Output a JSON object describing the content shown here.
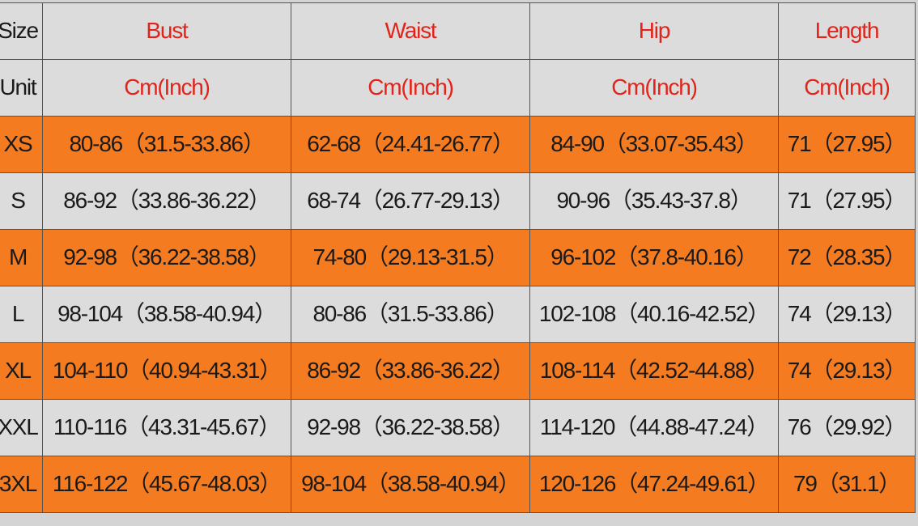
{
  "colors": {
    "header_text": "#e2231a",
    "orange_row": "#f47b20",
    "gray_row": "#dcdcdc"
  },
  "header": {
    "size": "Size",
    "columns": [
      "Bust",
      "Waist",
      "Hip",
      "Length"
    ]
  },
  "units": {
    "label": "Unit",
    "values": [
      "Cm(Inch)",
      "Cm(Inch)",
      "Cm(Inch)",
      "Cm(Inch)"
    ]
  },
  "rows": [
    {
      "size": "XS",
      "bust": "80-86（31.5-33.86）",
      "waist": "62-68（24.41-26.77）",
      "hip": "84-90（33.07-35.43）",
      "length": "71（27.95）"
    },
    {
      "size": "S",
      "bust": "86-92（33.86-36.22）",
      "waist": "68-74（26.77-29.13）",
      "hip": "90-96（35.43-37.8）",
      "length": "71（27.95）"
    },
    {
      "size": "M",
      "bust": "92-98（36.22-38.58）",
      "waist": "74-80（29.13-31.5）",
      "hip": "96-102（37.8-40.16）",
      "length": "72（28.35）"
    },
    {
      "size": "L",
      "bust": "98-104（38.58-40.94）",
      "waist": "80-86（31.5-33.86）",
      "hip": "102-108（40.16-42.52）",
      "length": "74（29.13）"
    },
    {
      "size": "XL",
      "bust": "104-110（40.94-43.31）",
      "waist": "86-92（33.86-36.22）",
      "hip": "108-114（42.52-44.88）",
      "length": "74（29.13）"
    },
    {
      "size": "XXL",
      "bust": "110-116（43.31-45.67）",
      "waist": "92-98（36.22-38.58）",
      "hip": "114-120（44.88-47.24）",
      "length": "76（29.92）"
    },
    {
      "size": "3XL",
      "bust": "116-122（45.67-48.03）",
      "waist": "98-104（38.58-40.94）",
      "hip": "120-126（47.24-49.61）",
      "length": "79（31.1）"
    }
  ]
}
